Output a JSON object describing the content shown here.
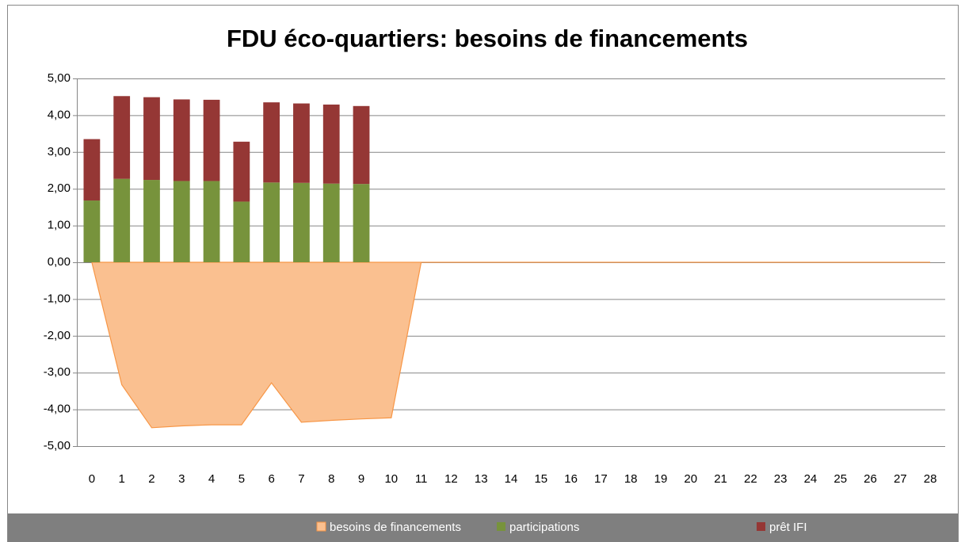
{
  "chart_data": {
    "type": "bar",
    "title": "FDU éco-quartiers: besoins de financements",
    "stacked": true,
    "grid": true,
    "legend": "bottom",
    "categories": [
      0,
      1,
      2,
      3,
      4,
      5,
      6,
      7,
      8,
      9,
      10,
      11,
      12,
      13,
      14,
      15,
      16,
      17,
      18,
      19,
      20,
      21,
      22,
      23,
      24,
      25,
      26,
      27,
      28
    ],
    "series": [
      {
        "name": "besoins de financements",
        "type": "area",
        "color": "#fac090",
        "values": [
          0,
          -3.33,
          -4.5,
          -4.45,
          -4.42,
          -4.42,
          -3.28,
          -4.35,
          -4.3,
          -4.26,
          -4.23,
          0,
          0,
          0,
          0,
          0,
          0,
          0,
          0,
          0,
          0,
          0,
          0,
          0,
          0,
          0,
          0,
          0,
          0
        ]
      },
      {
        "name": "participations",
        "type": "bar",
        "color": "#77933c",
        "values": [
          1.68,
          2.27,
          2.24,
          2.21,
          2.21,
          1.65,
          2.17,
          2.16,
          2.14,
          2.13,
          0,
          0,
          0,
          0,
          0,
          0,
          0,
          0,
          0,
          0,
          0,
          0,
          0,
          0,
          0,
          0,
          0,
          0,
          0
        ]
      },
      {
        "name": "prêt IFI",
        "type": "bar",
        "color": "#953735",
        "values": [
          1.67,
          2.25,
          2.25,
          2.22,
          2.21,
          1.63,
          2.18,
          2.16,
          2.15,
          2.12,
          0,
          0,
          0,
          0,
          0,
          0,
          0,
          0,
          0,
          0,
          0,
          0,
          0,
          0,
          0,
          0,
          0,
          0,
          0
        ]
      }
    ],
    "ylim": [
      -5,
      5
    ],
    "yticks": [
      {
        "value": -5,
        "label": "-5,00"
      },
      {
        "value": -4,
        "label": "-4,00"
      },
      {
        "value": -3,
        "label": "-3,00"
      },
      {
        "value": -2,
        "label": "-2,00"
      },
      {
        "value": -1,
        "label": "-1,00"
      },
      {
        "value": 0,
        "label": "0,00"
      },
      {
        "value": 1,
        "label": "1,00"
      },
      {
        "value": 2,
        "label": "2,00"
      },
      {
        "value": 3,
        "label": "3,00"
      },
      {
        "value": 4,
        "label": "4,00"
      },
      {
        "value": 5,
        "label": "5,00"
      }
    ]
  }
}
